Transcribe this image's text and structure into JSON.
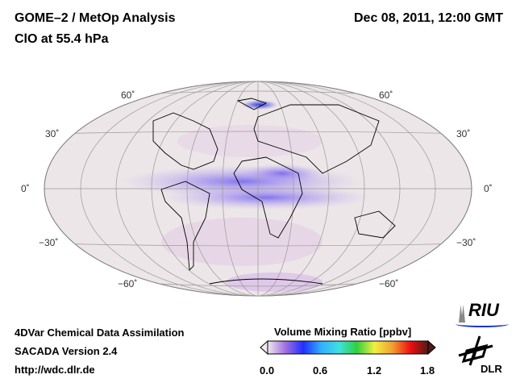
{
  "header": {
    "title": "GOME–2 / MetOp Analysis",
    "subtitle": "ClO at 55.4 hPa",
    "datetime": "Dec 08, 2011, 12:00 GMT"
  },
  "map": {
    "lat_labels": [
      "60˚",
      "30˚",
      "0˚",
      "−30˚",
      "−60˚"
    ]
  },
  "footer": {
    "line1": "4DVar Chemical Data Assimilation",
    "line2": "SACADA Version 2.4",
    "line3": "http://wdc.dlr.de"
  },
  "colorbar": {
    "title": "Volume Mixing Ratio [ppbv]",
    "ticks": [
      "0.0",
      "0.6",
      "1.2",
      "1.8"
    ],
    "range": [
      0,
      1.8
    ],
    "colors": [
      "#f0e8ec",
      "#a070e0",
      "#2030ff",
      "#30b0ff",
      "#40e0e0",
      "#30d040",
      "#f0f040",
      "#f0a030",
      "#f01010",
      "#501818"
    ]
  },
  "logos": {
    "riu": "RIU",
    "dlr": "DLR"
  }
}
